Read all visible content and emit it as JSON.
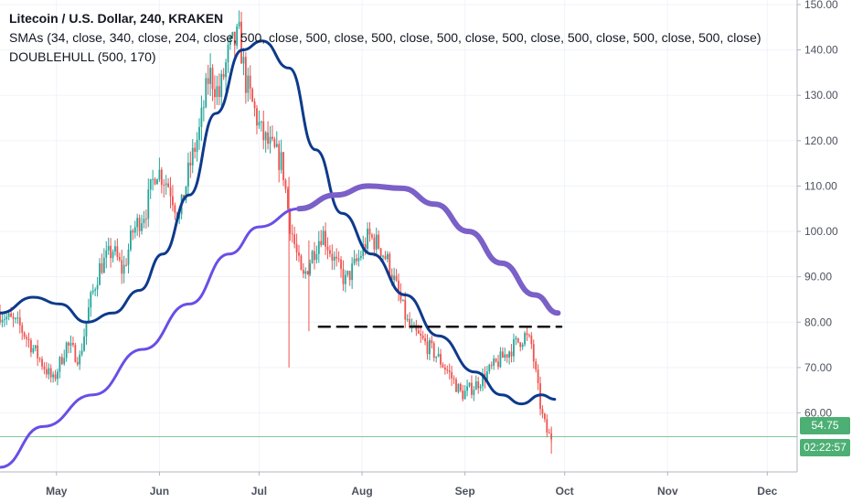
{
  "legend": {
    "title": "Litecoin / U.S. Dollar, 240, KRAKEN",
    "sma": "SMAs (34, close, 340, close, 204, close, 500, close, 500, close, 500, close, 500, close, 500, close, 500, close, 500, close, 500, close)",
    "hull": "DOUBLEHULL (500, 170)"
  },
  "price_badge": "54.75",
  "countdown_badge": "02:22:57",
  "colors": {
    "up": "#26a69a",
    "down": "#ef5350",
    "hull": "#0d3a8c",
    "sma": "#6a4ee6",
    "sma_thick": "#7a60c8",
    "dashed": "#111111",
    "price_line": "#4caf73"
  },
  "chart_data": {
    "type": "line",
    "title": "Litecoin / U.S. Dollar, 240, KRAKEN",
    "y_ticks": [
      "150.00",
      "140.00",
      "130.00",
      "120.00",
      "110.00",
      "100.00",
      "90.00",
      "80.00",
      "70.00",
      "60.00"
    ],
    "ylim": [
      47,
      151
    ],
    "x_tick_labels": [
      "May",
      "Jun",
      "Jul",
      "Aug",
      "Sep",
      "Oct",
      "Nov",
      "Dec"
    ],
    "x_tick_dates": [
      "2019-05-01",
      "2019-06-01",
      "2019-07-01",
      "2019-08-01",
      "2019-09-01",
      "2019-10-01",
      "2019-11-01",
      "2019-12-01"
    ],
    "xlim": [
      "2019-04-14",
      "2019-12-10"
    ],
    "last_price": 54.75,
    "price_path": [
      [
        "2019-04-14",
        82
      ],
      [
        "2019-04-20",
        79
      ],
      [
        "2019-04-25",
        73
      ],
      [
        "2019-04-30",
        67
      ],
      [
        "2019-05-04",
        75
      ],
      [
        "2019-05-08",
        72
      ],
      [
        "2019-05-11",
        84
      ],
      [
        "2019-05-14",
        92
      ],
      [
        "2019-05-18",
        96
      ],
      [
        "2019-05-21",
        91
      ],
      [
        "2019-05-24",
        100
      ],
      [
        "2019-05-28",
        105
      ],
      [
        "2019-05-31",
        114
      ],
      [
        "2019-06-04",
        110
      ],
      [
        "2019-06-07",
        103
      ],
      [
        "2019-06-10",
        114
      ],
      [
        "2019-06-13",
        122
      ],
      [
        "2019-06-16",
        135
      ],
      [
        "2019-06-19",
        130
      ],
      [
        "2019-06-22",
        140
      ],
      [
        "2019-06-25",
        143
      ],
      [
        "2019-06-27",
        133
      ],
      [
        "2019-06-29",
        128
      ],
      [
        "2019-07-02",
        121
      ],
      [
        "2019-07-05",
        118
      ],
      [
        "2019-07-08",
        115
      ],
      [
        "2019-07-10",
        103
      ],
      [
        "2019-07-12",
        96
      ],
      [
        "2019-07-14",
        89
      ],
      [
        "2019-07-17",
        95
      ],
      [
        "2019-07-20",
        100
      ],
      [
        "2019-07-24",
        93
      ],
      [
        "2019-07-27",
        89
      ],
      [
        "2019-07-31",
        94
      ],
      [
        "2019-08-03",
        99
      ],
      [
        "2019-08-06",
        97
      ],
      [
        "2019-08-09",
        93
      ],
      [
        "2019-08-12",
        86
      ],
      [
        "2019-08-15",
        79
      ],
      [
        "2019-08-19",
        76
      ],
      [
        "2019-08-23",
        73
      ],
      [
        "2019-08-27",
        69
      ],
      [
        "2019-08-31",
        64
      ],
      [
        "2019-09-04",
        66
      ],
      [
        "2019-09-08",
        69
      ],
      [
        "2019-09-12",
        72
      ],
      [
        "2019-09-16",
        75
      ],
      [
        "2019-09-19",
        77
      ],
      [
        "2019-09-21",
        75
      ],
      [
        "2019-09-22",
        70
      ],
      [
        "2019-09-24",
        60
      ],
      [
        "2019-09-26",
        55
      ],
      [
        "2019-09-27",
        54.75
      ]
    ],
    "series": [
      {
        "values": [
          [
            "2019-04-14",
            82
          ],
          [
            "2019-04-24",
            85.5
          ],
          [
            "2019-05-02",
            84
          ],
          [
            "2019-05-10",
            80
          ],
          [
            "2019-05-18",
            82
          ],
          [
            "2019-05-26",
            87
          ],
          [
            "2019-06-02",
            95
          ],
          [
            "2019-06-10",
            108
          ],
          [
            "2019-06-18",
            126
          ],
          [
            "2019-06-26",
            140
          ],
          [
            "2019-07-02",
            142
          ],
          [
            "2019-07-10",
            136
          ],
          [
            "2019-07-18",
            118
          ],
          [
            "2019-07-26",
            104
          ],
          [
            "2019-08-04",
            95
          ],
          [
            "2019-08-14",
            86
          ],
          [
            "2019-08-24",
            77
          ],
          [
            "2019-09-04",
            69
          ],
          [
            "2019-09-12",
            64
          ],
          [
            "2019-09-18",
            62
          ],
          [
            "2019-09-24",
            64
          ],
          [
            "2019-09-28",
            63
          ]
        ]
      },
      {
        "values": [
          [
            "2019-04-14",
            48
          ],
          [
            "2019-04-27",
            57
          ],
          [
            "2019-05-12",
            64
          ],
          [
            "2019-05-27",
            74
          ],
          [
            "2019-06-10",
            84
          ],
          [
            "2019-06-22",
            95
          ],
          [
            "2019-07-01",
            101
          ],
          [
            "2019-07-13",
            105
          ]
        ]
      },
      {
        "values": [
          [
            "2019-07-13",
            105
          ],
          [
            "2019-07-24",
            108
          ],
          [
            "2019-08-03",
            110
          ],
          [
            "2019-08-13",
            109.5
          ],
          [
            "2019-08-23",
            106
          ],
          [
            "2019-09-02",
            100
          ],
          [
            "2019-09-12",
            93
          ],
          [
            "2019-09-22",
            86
          ],
          [
            "2019-09-29",
            82
          ]
        ]
      },
      {
        "values": [
          [
            "2019-07-19",
            79
          ],
          [
            "2019-09-30",
            79
          ]
        ]
      }
    ]
  }
}
